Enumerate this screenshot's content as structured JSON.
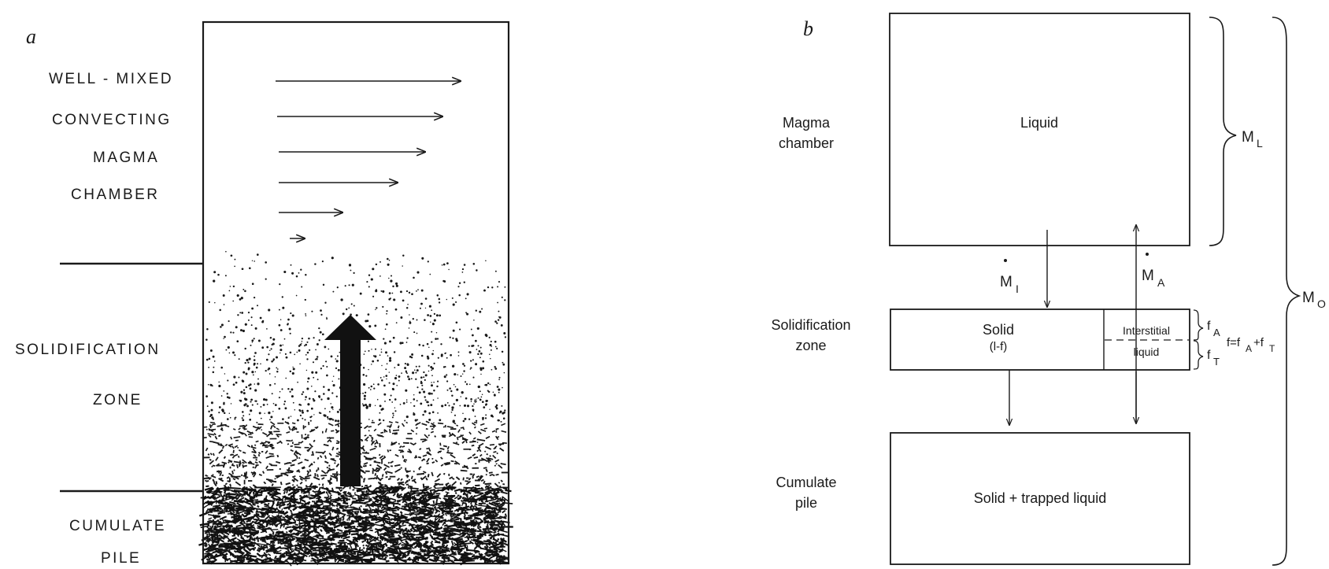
{
  "panel_a": {
    "letter": "a",
    "labels": {
      "line1": "WELL - MIXED",
      "line2": "CONVECTING",
      "line3": "MAGMA",
      "line4": "CHAMBER",
      "solid1": "SOLIDIFICATION",
      "solid2": "ZONE",
      "cum1": "CUMULATE",
      "cum2": "PILE"
    }
  },
  "panel_b": {
    "letter": "b",
    "magma_chamber": {
      "line1": "Magma",
      "line2": "chamber"
    },
    "solidification_zone": {
      "line1": "Solidification",
      "line2": "zone"
    },
    "cumulate_pile": {
      "line1": "Cumulate",
      "line2": "pile"
    },
    "liquid_box": "Liquid",
    "solid_label": "Solid",
    "solid_fraction": "(l-f)",
    "interstitial1": "Interstitial",
    "interstitial2": "liquid",
    "cumulate_box": "Solid + trapped liquid",
    "m_i": "M",
    "m_i_sub": "I",
    "m_a": "M",
    "m_a_sub": "A",
    "m_l": "M",
    "m_l_sub": "L",
    "m_o": "M",
    "m_o_sub": "O",
    "f_a": "f",
    "f_a_sub": "A",
    "f_t": "f",
    "f_t_sub": "T",
    "f_eq": "f=f",
    "f_eq_sub1": "A",
    "f_eq_plus": "+f",
    "f_eq_sub2": "T"
  }
}
